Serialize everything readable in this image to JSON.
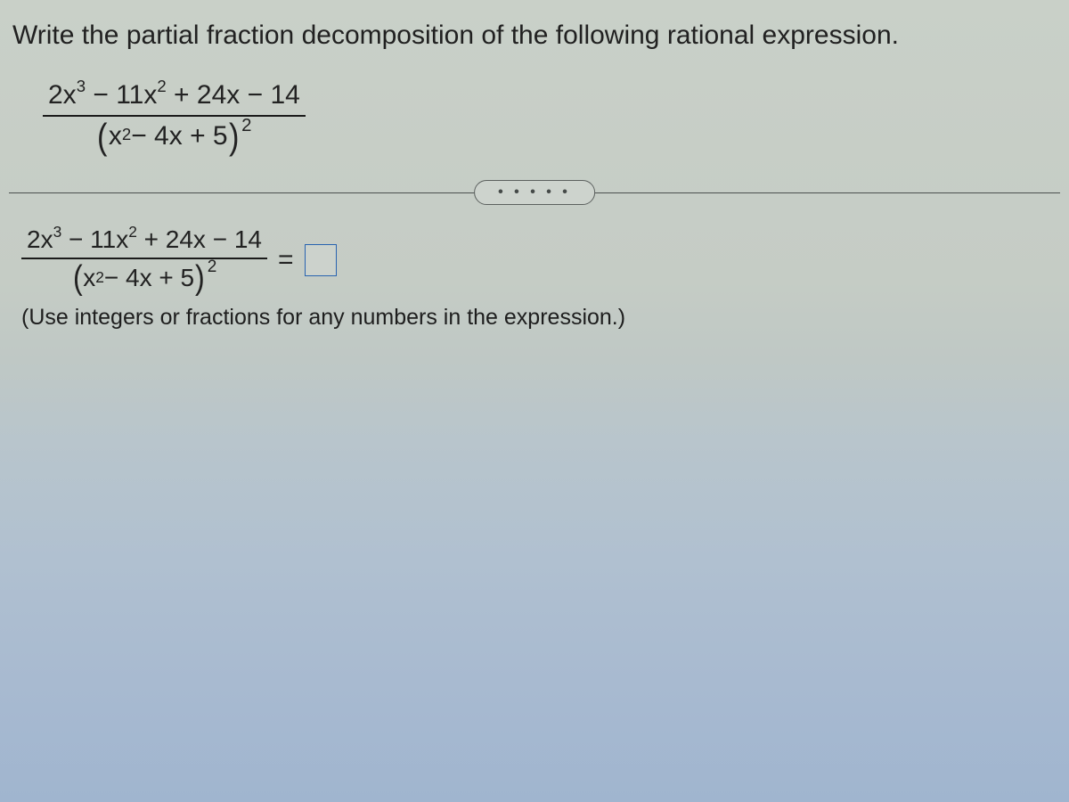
{
  "prompt": "Write the partial fraction decomposition of the following rational expression.",
  "fraction": {
    "num_lead_coef": "2x",
    "num_exp1": "3",
    "num_mid": " − 11x",
    "num_exp2": "2",
    "num_tail": " + 24x − 14",
    "den_open": "(",
    "den_inner_lead": "x",
    "den_inner_exp": "2",
    "den_inner_tail": " − 4x + 5",
    "den_close": ")",
    "den_outer_exp": "2"
  },
  "divider_dots": "• • • • •",
  "equals": "=",
  "hint": "(Use integers or fractions for any numbers in the expression.)",
  "style": {
    "text_color": "#222222",
    "border_color": "#2863b0",
    "prompt_fontsize": 30,
    "math_fontsize": 30,
    "hint_fontsize": 25
  }
}
